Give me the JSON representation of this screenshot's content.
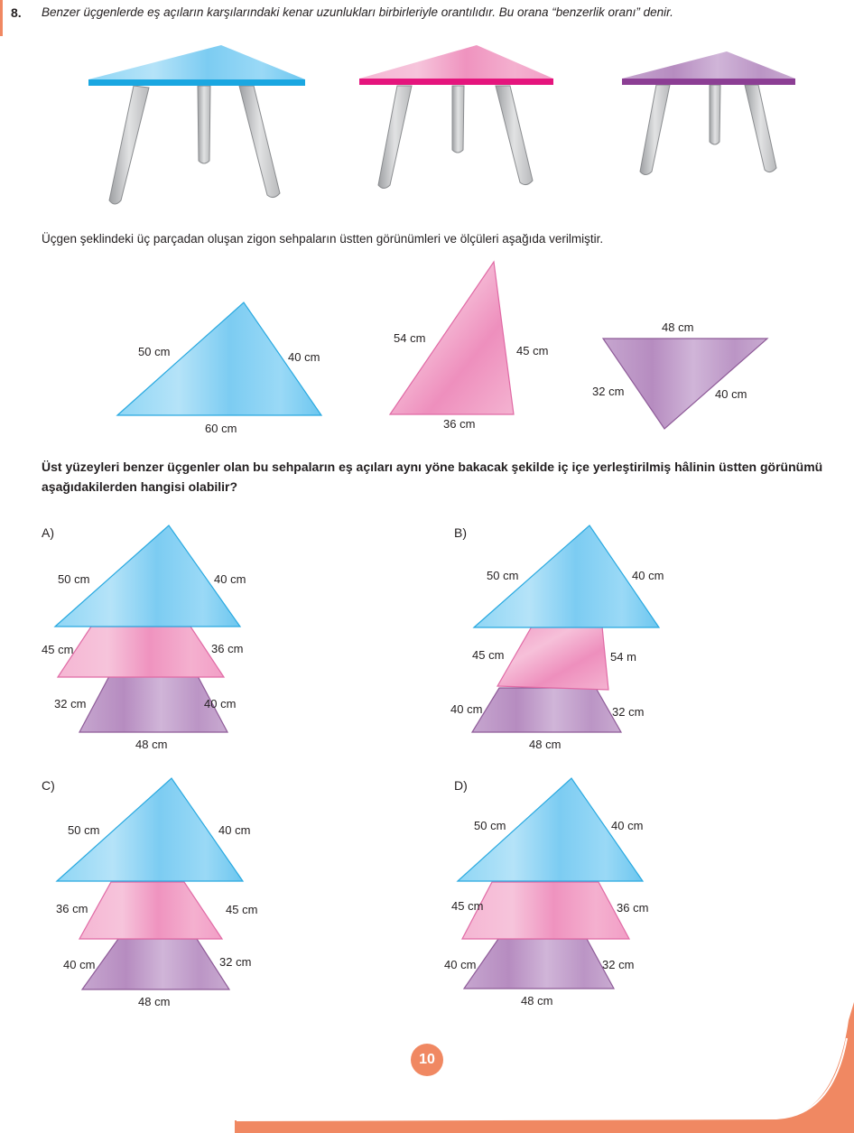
{
  "question": {
    "number": "8.",
    "intro": "Benzer üçgenlerde eş açıların karşılarındaki kenar uzunlukları birbirleriyle orantılıdır. Bu orana “benzerlik oranı” denir.",
    "description": "Üçgen şeklindeki üç parçadan oluşan zigon sehpaların üstten görünümleri ve ölçüleri aşağıda verilmiştir.",
    "prompt": "Üst yüzeyleri benzer üçgenler olan bu sehpaların eş açıları aynı yöne bakacak şekilde iç içe yerleştirilmiş hâlinin üstten görünümü aşağıdakilerden hangisi olabilir?"
  },
  "colors": {
    "blue": "#5fc4ef",
    "pink": "#ef8fbe",
    "purple": "#b78dc0",
    "accent": "#f08862",
    "leg": "#c9cacc"
  },
  "given_triangles": {
    "blue": {
      "left": "50 cm",
      "right": "40 cm",
      "bottom": "60 cm"
    },
    "pink": {
      "left": "54 cm",
      "right": "45 cm",
      "bottom": "36 cm"
    },
    "purple": {
      "top": "48 cm",
      "left": "32 cm",
      "right": "40 cm"
    }
  },
  "options": {
    "A": {
      "label": "A)",
      "blue_left": "50 cm",
      "blue_right": "40 cm",
      "pink_left": "45 cm",
      "pink_right": "36 cm",
      "purple_left": "32 cm",
      "purple_right": "40 cm",
      "purple_bottom": "48 cm"
    },
    "B": {
      "label": "B)",
      "blue_left": "50 cm",
      "blue_right": "40 cm",
      "pink_left": "45 cm",
      "pink_right": "54 m",
      "purple_left": "40 cm",
      "purple_right": "32 cm",
      "purple_bottom": "48 cm"
    },
    "C": {
      "label": "C)",
      "blue_left": "50 cm",
      "blue_right": "40 cm",
      "pink_left": "36 cm",
      "pink_right": "45 cm",
      "purple_left": "40 cm",
      "purple_right": "32 cm",
      "purple_bottom": "48 cm"
    },
    "D": {
      "label": "D)",
      "blue_left": "50 cm",
      "blue_right": "40 cm",
      "pink_left": "45 cm",
      "pink_right": "36 cm",
      "purple_left": "40 cm",
      "purple_right": "32 cm",
      "purple_bottom": "48 cm"
    }
  },
  "page_number": "10"
}
